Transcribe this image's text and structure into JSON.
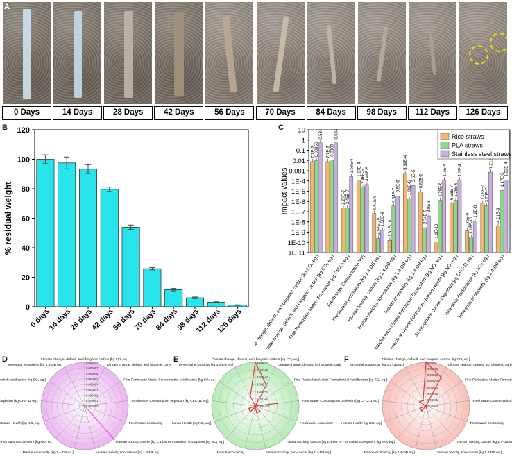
{
  "panels": {
    "A": "A",
    "B": "B",
    "C": "C",
    "D": "D",
    "E": "E",
    "F": "F"
  },
  "photo_days": [
    "0 Days",
    "14 Days",
    "28 Days",
    "42 Days",
    "56 Days",
    "70 Days",
    "84 Days",
    "98 Days",
    "112 Days",
    "126 Days"
  ],
  "colors": {
    "cyan": "#27e5eb",
    "rice": "#f7b26b",
    "pla": "#8fd88a",
    "steel": "#c9aee0",
    "soil": "#8f857a"
  },
  "chart_data": [
    {
      "id": "B",
      "type": "bar",
      "title": "",
      "xlabel": "",
      "ylabel": "% residual weight",
      "ylim": [
        0,
        120
      ],
      "yticks": [
        "0",
        "20",
        "40",
        "60",
        "80",
        "100",
        "120"
      ],
      "categories": [
        "0 days",
        "14 days",
        "28 days",
        "42 days",
        "56 days",
        "70 days",
        "84 days",
        "98 days",
        "112 days",
        "126 days"
      ],
      "values": [
        100,
        97.5,
        93.3,
        79.6,
        53.9,
        25.8,
        11.6,
        6.1,
        3.1,
        1.1
      ],
      "errors": [
        3,
        4,
        3,
        1.5,
        1.5,
        0.8,
        0.8,
        0.5,
        0.3,
        0.2
      ]
    },
    {
      "id": "C",
      "type": "bar",
      "scale": "log",
      "ylabel": "Impact values",
      "ylim_exp": [
        -11,
        1
      ],
      "yticks": [
        "1E-11",
        "1E-10",
        "1E-9",
        "1E-8",
        "1E-7",
        "1E-6",
        "1E-5",
        "1E-4",
        "0.001",
        "0.01",
        "0.1",
        "1",
        "10"
      ],
      "legend": [
        "Rice straws",
        "PLA straws",
        "Stainless steel straws"
      ],
      "categories": [
        "Climate change, default, excl biogenic carbon [kg CO₂ eq.]",
        "Climate change, default, incl biogenic carbon [kg CO₂ eq.]",
        "Fine Particulate Matter Formation [kg PM2.5 eq.]",
        "Freshwater Consumption [m³]",
        "Freshwater ecotoxicity [kg 1,4-DB eq.]",
        "Human toxicity, cancer [kg 1,4-DB eq.]",
        "Human toxicity, non-cancer [kg 1,4-DB eq.]",
        "Marine ecotoxicity [kg 1,4-DB eq.]",
        "Photochemical Ozone Formation Ecosystem [kg NOₓ eq.]",
        "Photochemical Ozone Formation Human Health [kg NOₓ eq.]",
        "Stratospheric Ozone Depletion [kg CFC-11 eq.]",
        "Terrestrial Acidification [kg SO₂ eq.]",
        "Terrestrial ecotoxicity [kg 1,4-DB eq.]"
      ],
      "series": [
        {
          "name": "Rice straws",
          "values": [
            0.0077,
            0.0077,
            2.27e-07,
            0.000117,
            6.61e-08,
            1.61e-10,
            0.000539,
            8.82e-06,
            1.1e-10,
            6.53e-07,
            1.35e-09,
            7.09e-07,
            4.01e-09
          ],
          "labels": [
            "7.7E-3",
            "7.7E-3",
            "2.27E-7",
            "1.17E-4",
            "6.61E-8",
            "1.61E-10",
            "5.39E-4",
            "8.82E-6",
            "1.1E-10",
            "6.53E-7",
            "1.35E-9",
            "7.09E-7",
            "4.01E-9"
          ]
        },
        {
          "name": "PLA straws",
          "values": [
            0.00956,
            0.0109,
            2.45e-07,
            2.46e-05,
            2.54e-10,
            3.54e-07,
            1.91e-06,
            2.74e-09,
            1.28e-06,
            1.28e-06,
            3.18e-10,
            3.76e-07,
            1.17e-05
          ],
          "labels": [
            "0.00956",
            "0.0109",
            "2.45E-7",
            "2.46E-5",
            "2.54E-10",
            "3.54E-7",
            "1.91E-6",
            "2.74E-9",
            "1.28E-6",
            "1.28E-6",
            "3.18E-10",
            "3.76E-7",
            "1.17E-5"
          ]
        },
        {
          "name": "Stainless steel straws",
          "values": [
            0.534,
            0.534,
            0.000268,
            4.46e-05,
            1.58e-09,
            3.5e-06,
            3.6e-05,
            3.9e-08,
            0.00013,
            0.00013,
            1.2e-08,
            0.000721,
            0.000122
          ],
          "labels": [
            "0.534",
            "0.534",
            "2.68E-4",
            "4.46E-5",
            "1.58E-9",
            "3.5E-6",
            "3.6E-5",
            "3.9E-8",
            "1.3E-4",
            "1.3E-4",
            "1.2E-8",
            "7.21E-4",
            "1.22E-4"
          ]
        }
      ]
    },
    {
      "id": "D",
      "type": "radar",
      "color": "#dd55dd",
      "axes": [
        "Climate change, default, excl biogenic carbon [kg CO₂ eq.]",
        "Climate change, default, incl biogenic carbon [kg CO₂ eq.]",
        "Fine Particulate Matter Formation [kg PM2.5 eq.]",
        "Freshwater Consumption [m³]",
        "Freshwater ecotoxicity",
        "Human toxicity, cancer [kg 1,4-DB eq.]",
        "Human toxicity, non-cancer [kg 1,4-DB eq.]",
        "Marine ecotoxicity [kg 1,4-DB eq.]",
        "Photochemical Ozone Formation Ecosystem [kg NOₓ eq.]",
        "Photochemical Ozone Formation Human Health [kg NOₓ eq.]",
        "Stratospheric Ozone Depletion [kg CFC-11 eq.]",
        "Terrestrial Acidification [kg SO₂ eq.]",
        "Terrestrial ecotoxicity [kg 1,4-DB eq.]"
      ],
      "rings": [
        "0.000000",
        "0.000001",
        "0.000002",
        "0.000003",
        "0.000004",
        "0.000005",
        "0.000006",
        "0.000007",
        "0.000008"
      ],
      "values": [
        0,
        0,
        0,
        0,
        0,
        8.2e-06,
        0,
        0,
        0,
        0,
        0,
        0,
        0
      ],
      "rmax": 8e-06
    },
    {
      "id": "E",
      "type": "radar",
      "color": "#e03333",
      "axes": [
        "Climate change, default, excl biogenic carbon [kg CO₂ eq.]",
        "Climate change, default, incl biogenic carbon [kg CO₂ eq.]",
        "Fine Particulate Matter Formation [kg PM2.5 eq.]",
        "Freshwater Consumption [m³]",
        "Freshwater ecotoxicity",
        "Human toxicity, cancer [kg 1,4-DB eq.]",
        "Human toxicity, non-cancer [kg 1,4-DB eq.]",
        "Marine ecotoxicity",
        "Photochemical Ozone Formation Ecosystem [kg NOₓ eq.]",
        "Photochemical Ozone Formation Human Health [kg NOₓ eq.]",
        "Stratospheric Ozone Depletion [kg CFC-11 eq.]",
        "Terrestrial Acidification [kg SO₂ eq.]",
        "Terrestrial ecotoxicity [kg 1,4-DB eq.]"
      ],
      "rings": [
        "0.00E+00",
        "2.00E-07",
        "4.00E-07",
        "6.00E-07",
        "8.00E-07",
        "1.00E-06",
        "1.20E-06"
      ],
      "values": [
        1.2e-06,
        6.5e-07,
        0,
        6e-07,
        0,
        1.8e-07,
        1.9e-07,
        4e-08,
        2e-07,
        2e-07,
        0,
        0,
        3e-07
      ],
      "rmax": 1.2e-06
    },
    {
      "id": "F",
      "type": "radar",
      "color": "#e03333",
      "axes": [
        "Climate change, default, excl biogenic carbon [kg CO₂ eq.]",
        "Climate change, default, incl biogenic carbon [kg CO₂ eq.]",
        "Fine Particulate Matter Formation [kg PM2.5 eq.]",
        "Freshwater Consumption [m³]",
        "Freshwater ecotoxicity",
        "Human toxicity, cancer [kg 1,4-DB eq.]",
        "Human toxicity, non-cancer [kg 1,4-DB eq.]",
        "Marine ecotoxicity [kg 1,4-DB eq.]",
        "Photochemical Ozone Formation Ecosystem [kg NOₓ eq.]",
        "Photochemical Ozone Formation Human Health [kg NOₓ eq.]",
        "Stratospheric Ozone Depletion [kg CFC-11 eq.]",
        "Terrestrial Acidification [kg SO₂ eq.]",
        "Terrestrial ecotoxicity [kg 1,4-DB eq.]"
      ],
      "rings": [
        "0.00000",
        "0.00001",
        "0.00002",
        "0.00003",
        "0.00004",
        "0.00005",
        "0.00006",
        "0.00007"
      ],
      "values": [
        7e-05,
        5.2e-05,
        0,
        0,
        0,
        0,
        1e-05,
        0,
        1e-05,
        1e-05,
        0,
        1.2e-05,
        1e-05
      ],
      "rmax": 7e-05
    }
  ]
}
